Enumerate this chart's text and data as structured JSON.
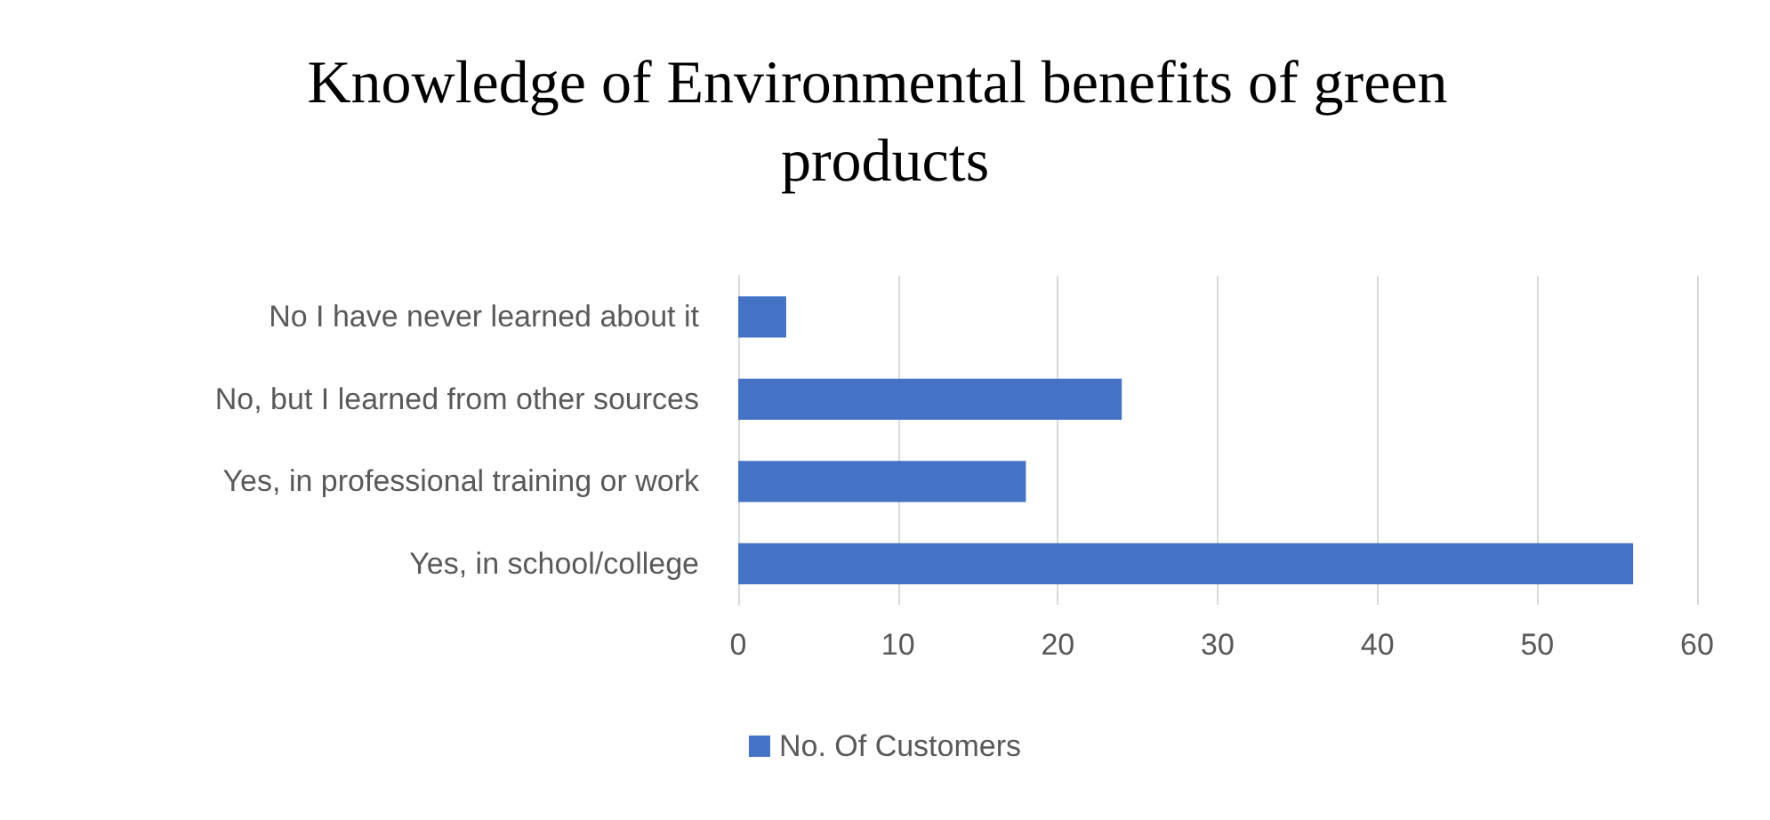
{
  "chart_data": {
    "type": "bar",
    "orientation": "horizontal",
    "title": "Knowledge of Environmental benefits of green products",
    "categories": [
      "No I have never learned about it",
      "No, but I learned from other sources",
      "Yes, in professional training or work",
      "Yes, in school/college"
    ],
    "series": [
      {
        "name": "No. Of Customers",
        "color": "#4472c4",
        "values": [
          3,
          24,
          18,
          56
        ]
      }
    ],
    "xlim": [
      0,
      60
    ],
    "xticks": [
      0,
      10,
      20,
      30,
      40,
      50,
      60
    ],
    "grid": "x",
    "legend": "bottom"
  }
}
